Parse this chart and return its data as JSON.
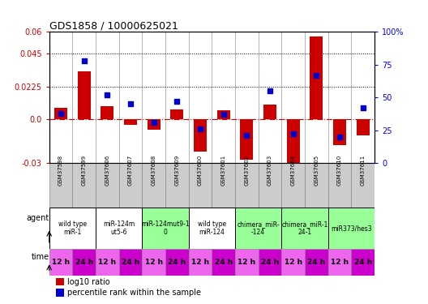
{
  "title": "GDS1858 / 10000625021",
  "samples": [
    "GSM37598",
    "GSM37599",
    "GSM37606",
    "GSM37607",
    "GSM37608",
    "GSM37609",
    "GSM37600",
    "GSM37601",
    "GSM37602",
    "GSM37603",
    "GSM37604",
    "GSM37605",
    "GSM37610",
    "GSM37611"
  ],
  "log10_ratio": [
    0.008,
    0.033,
    0.009,
    -0.004,
    -0.007,
    0.007,
    -0.022,
    0.006,
    -0.028,
    0.01,
    -0.0375,
    0.057,
    -0.018,
    -0.011
  ],
  "percentile_rank": [
    38,
    78,
    52,
    45,
    31,
    47,
    26,
    37,
    21,
    55,
    22,
    67,
    20,
    42
  ],
  "ylim_left": [
    -0.03,
    0.06
  ],
  "ylim_right": [
    0,
    100
  ],
  "yticks_left": [
    -0.03,
    0.0,
    0.0225,
    0.045,
    0.06
  ],
  "yticks_right": [
    0,
    25,
    50,
    75,
    100
  ],
  "hlines": [
    0.0225,
    0.045
  ],
  "bar_color": "#cc0000",
  "dot_color": "#0000cc",
  "agent_groups": [
    {
      "label": "wild type\nmiR-1",
      "cols": [
        0,
        1
      ],
      "color": "#ffffff"
    },
    {
      "label": "miR-124m\nut5-6",
      "cols": [
        2,
        3
      ],
      "color": "#ffffff"
    },
    {
      "label": "miR-124mut9-1\n0",
      "cols": [
        4,
        5
      ],
      "color": "#99ff99"
    },
    {
      "label": "wild type\nmiR-124",
      "cols": [
        6,
        7
      ],
      "color": "#ffffff"
    },
    {
      "label": "chimera_miR-\n-124",
      "cols": [
        8,
        9
      ],
      "color": "#99ff99"
    },
    {
      "label": "chimera_miR-1\n24-1",
      "cols": [
        10,
        11
      ],
      "color": "#99ff99"
    },
    {
      "label": "miR373/hes3",
      "cols": [
        12,
        13
      ],
      "color": "#99ff99"
    }
  ],
  "time_labels": [
    "12 h",
    "24 h",
    "12 h",
    "24 h",
    "12 h",
    "24 h",
    "12 h",
    "24 h",
    "12 h",
    "24 h",
    "12 h",
    "24 h",
    "12 h",
    "24 h"
  ],
  "time_colors_alt": [
    "#ee66ee",
    "#cc00cc",
    "#ee66ee",
    "#cc00cc",
    "#ee66ee",
    "#cc00cc",
    "#ee66ee",
    "#cc00cc",
    "#ee66ee",
    "#cc00cc",
    "#ee66ee",
    "#cc00cc",
    "#ee66ee",
    "#cc00cc"
  ],
  "bg_color": "#ffffff",
  "sample_bg": "#cccccc",
  "bar_color_red": "#cc0000",
  "dot_color_blue": "#0000cc"
}
